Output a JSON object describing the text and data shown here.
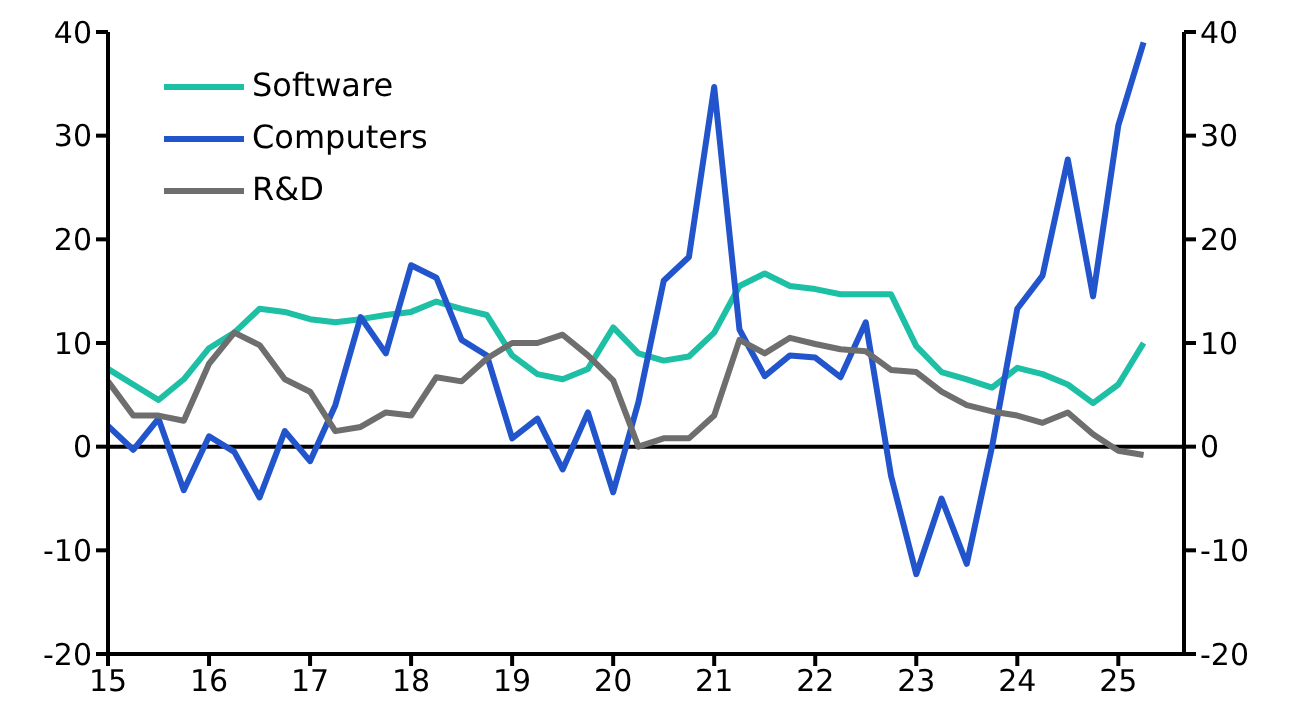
{
  "chart_data": {
    "type": "line",
    "x": [
      15,
      15.25,
      15.5,
      15.75,
      16,
      16.25,
      16.5,
      16.75,
      17,
      17.25,
      17.5,
      17.75,
      18,
      18.25,
      18.5,
      18.75,
      19,
      19.25,
      19.5,
      19.75,
      20,
      20.25,
      20.5,
      20.75,
      21,
      21.25,
      21.5,
      21.75,
      22,
      22.25,
      22.5,
      22.75,
      23,
      23.25,
      23.5,
      23.75,
      24,
      24.25,
      24.5,
      24.75,
      25,
      25.25
    ],
    "series": [
      {
        "name": "Software",
        "color": "#1dbfa5",
        "values": [
          7.5,
          6,
          4.5,
          6.5,
          9.5,
          11,
          13.3,
          13,
          12.3,
          12,
          12.3,
          12.7,
          13,
          14,
          13.3,
          12.7,
          8.8,
          7,
          6.5,
          7.5,
          11.5,
          9,
          8.3,
          8.7,
          11,
          15.5,
          16.7,
          15.5,
          15.2,
          14.7,
          14.7,
          14.7,
          9.7,
          7.2,
          6.5,
          5.7,
          7.6,
          7,
          6,
          4.2,
          6,
          10
        ]
      },
      {
        "name": "Computers",
        "color": "#2255cc",
        "values": [
          2,
          -0.3,
          2.7,
          -4.2,
          1,
          -0.5,
          -4.9,
          1.5,
          -1.4,
          4,
          12.5,
          9,
          17.5,
          16.3,
          10.3,
          8.8,
          0.8,
          2.7,
          -2.2,
          3.3,
          -4.4,
          4.3,
          16,
          18.3,
          34.7,
          11.3,
          6.8,
          8.8,
          8.6,
          6.7,
          12,
          -2.8,
          -12.3,
          -5,
          -11.3,
          0,
          13.3,
          16.5,
          27.7,
          14.5,
          31,
          39
        ]
      },
      {
        "name": "R&D",
        "color": "#6e6e6e",
        "values": [
          6.3,
          3,
          3,
          2.5,
          8,
          11,
          9.8,
          6.5,
          5.3,
          1.5,
          1.9,
          3.3,
          3,
          6.7,
          6.3,
          8.5,
          10,
          10,
          10.8,
          8.8,
          6.4,
          0,
          0.8,
          0.8,
          3,
          10.3,
          9,
          10.5,
          9.9,
          9.4,
          9.2,
          7.4,
          7.2,
          5.3,
          4,
          3.4,
          3,
          2.3,
          3.3,
          1.2,
          -0.4,
          -0.8
        ]
      }
    ],
    "xlim": [
      15,
      25.65
    ],
    "xticks": [
      15,
      16,
      17,
      18,
      19,
      20,
      21,
      22,
      23,
      24,
      25
    ],
    "ylim": [
      -20,
      40
    ],
    "yticks": [
      -20,
      -10,
      0,
      10,
      20,
      30,
      40
    ],
    "y2lim": [
      -20,
      40
    ],
    "y2ticks": [
      -20,
      -10,
      0,
      10,
      20,
      30,
      40
    ],
    "ref_lines": [
      {
        "axis": "y",
        "value": 0,
        "color": "#000000"
      }
    ],
    "legend": "top left",
    "grid": false,
    "marker": "none",
    "line_style": "solid"
  }
}
